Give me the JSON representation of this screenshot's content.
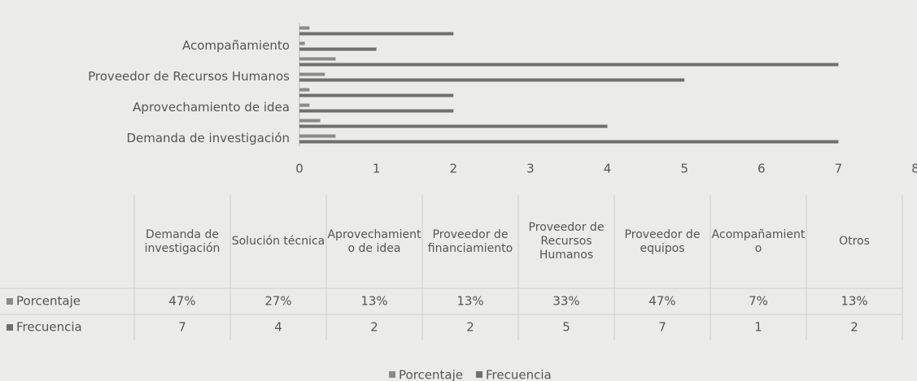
{
  "chart_data": {
    "type": "bar",
    "orientation": "horizontal",
    "categories": [
      "Demanda de investigación",
      "Solución técnica",
      "Aprovechamiento de idea",
      "Proveedor de financiamiento",
      "Proveedor de Recursos Humanos",
      "Proveedor de equipos",
      "Acompañamiento",
      "Otros"
    ],
    "category_label_step": 2,
    "series": [
      {
        "name": "Porcentaje",
        "color": "#8a8a8a",
        "values": [
          0.47,
          0.27,
          0.13,
          0.13,
          0.33,
          0.47,
          0.07,
          0.13
        ],
        "value_labels": [
          "47%",
          "27%",
          "13%",
          "13%",
          "33%",
          "47%",
          "7%",
          "13%"
        ]
      },
      {
        "name": "Frecuencia",
        "color": "#6f6f6f",
        "values": [
          7,
          4,
          2,
          2,
          5,
          7,
          1,
          2
        ]
      }
    ],
    "xlim": [
      0,
      8
    ],
    "xticks": [
      0,
      1,
      2,
      3,
      4,
      5,
      6,
      7,
      8
    ],
    "data_table": true,
    "legend": "bottom"
  }
}
